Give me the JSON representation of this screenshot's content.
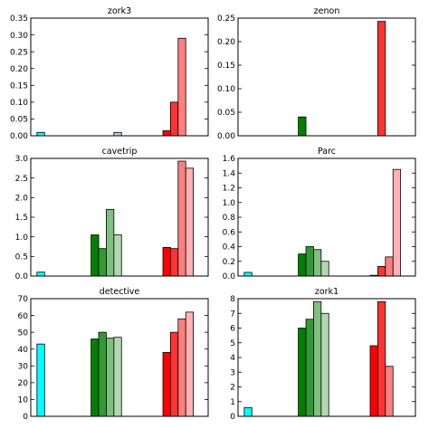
{
  "chart_data": [
    {
      "type": "bar",
      "title": "zork3",
      "ylim": [
        0,
        0.35
      ],
      "yticks": [
        "0.00",
        "0.05",
        "0.10",
        "0.15",
        "0.20",
        "0.25",
        "0.30",
        "0.35"
      ],
      "groups": [
        {
          "color": "cyan",
          "values": [
            0.01
          ]
        },
        {
          "color": "green",
          "values": [
            0.0,
            0.0,
            0.0,
            0.01
          ]
        },
        {
          "color": "red",
          "values": [
            0.015,
            0.1,
            0.29,
            0.0
          ]
        }
      ]
    },
    {
      "type": "bar",
      "title": "zenon",
      "ylim": [
        0,
        0.25
      ],
      "yticks": [
        "0.00",
        "0.05",
        "0.10",
        "0.15",
        "0.20",
        "0.25"
      ],
      "groups": [
        {
          "color": "cyan",
          "values": [
            0.0
          ]
        },
        {
          "color": "green",
          "values": [
            0.04,
            0.0,
            0.0,
            0.0
          ]
        },
        {
          "color": "red",
          "values": [
            0.0,
            0.243,
            0.0,
            0.0
          ]
        }
      ]
    },
    {
      "type": "bar",
      "title": "cavetrip",
      "ylim": [
        0,
        3.0
      ],
      "yticks": [
        "0.0",
        "0.5",
        "1.0",
        "1.5",
        "2.0",
        "2.5",
        "3.0"
      ],
      "groups": [
        {
          "color": "cyan",
          "values": [
            0.1
          ]
        },
        {
          "color": "green",
          "values": [
            1.05,
            0.7,
            1.7,
            1.05
          ]
        },
        {
          "color": "red",
          "values": [
            0.73,
            0.7,
            2.93,
            2.75
          ]
        }
      ]
    },
    {
      "type": "bar",
      "title": "Parc",
      "ylim": [
        0,
        1.6
      ],
      "yticks": [
        "0.0",
        "0.2",
        "0.4",
        "0.6",
        "0.8",
        "1.0",
        "1.2",
        "1.4",
        "1.6"
      ],
      "groups": [
        {
          "color": "cyan",
          "values": [
            0.05
          ]
        },
        {
          "color": "green",
          "values": [
            0.3,
            0.4,
            0.36,
            0.2
          ]
        },
        {
          "color": "red",
          "values": [
            0.01,
            0.13,
            0.26,
            1.45
          ]
        }
      ]
    },
    {
      "type": "bar",
      "title": "detective",
      "ylim": [
        0,
        70
      ],
      "yticks": [
        "0",
        "10",
        "20",
        "30",
        "40",
        "50",
        "60",
        "70"
      ],
      "groups": [
        {
          "color": "cyan",
          "values": [
            43
          ]
        },
        {
          "color": "green",
          "values": [
            46,
            50,
            46.5,
            47
          ]
        },
        {
          "color": "red",
          "values": [
            38,
            50,
            58,
            62
          ]
        }
      ]
    },
    {
      "type": "bar",
      "title": "zork1",
      "ylim": [
        0,
        8
      ],
      "yticks": [
        "0",
        "1",
        "2",
        "3",
        "4",
        "5",
        "6",
        "7",
        "8"
      ],
      "groups": [
        {
          "color": "cyan",
          "values": [
            0.6
          ]
        },
        {
          "color": "green",
          "values": [
            6.0,
            6.6,
            7.8,
            7.0
          ]
        },
        {
          "color": "red",
          "values": [
            4.8,
            7.8,
            3.4,
            0.0
          ]
        }
      ]
    }
  ],
  "colors": {
    "cyan": [
      "#00ffff"
    ],
    "green": [
      "#007f00",
      "#339933",
      "#7fbf7f",
      "#b2d8b2"
    ],
    "red": [
      "#ff0000",
      "#ff3333",
      "#ff7f7f",
      "#ffb2b2"
    ]
  }
}
